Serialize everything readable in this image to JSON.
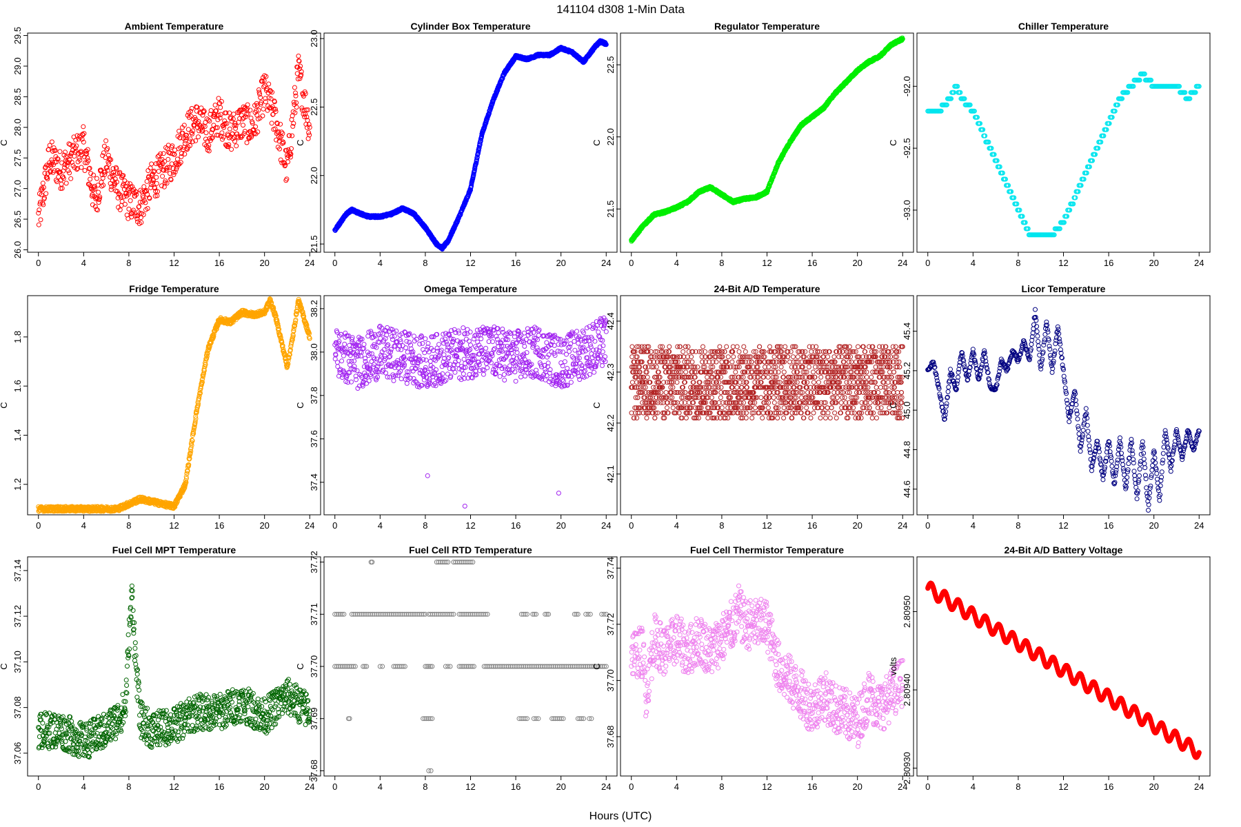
{
  "figure": {
    "title": "141104   d308   1-Min Data",
    "xlabel": "Hours (UTC)"
  },
  "chart_data": [
    {
      "type": "scatter",
      "title": "Ambient Temperature",
      "xlabel": "",
      "ylabel": "C",
      "color": "#ff0000",
      "xlim": [
        -0.96,
        24.96
      ],
      "ylim": [
        25.96,
        29.54
      ],
      "xticks": [
        0,
        4,
        8,
        12,
        16,
        20,
        24
      ],
      "yticks": [
        26.0,
        26.5,
        27.0,
        27.5,
        28.0,
        28.5,
        29.0,
        29.5
      ],
      "ytick_decimals": 1,
      "x": [
        0,
        1,
        2,
        3,
        4,
        5,
        6,
        7,
        8,
        9,
        10,
        11,
        12,
        13,
        14,
        15,
        16,
        17,
        18,
        19,
        20,
        21,
        22,
        23,
        24
      ],
      "y": [
        26.5,
        27.5,
        27.3,
        27.5,
        27.7,
        26.8,
        27.5,
        27.0,
        26.8,
        26.7,
        27.1,
        27.3,
        27.5,
        27.9,
        28.1,
        27.9,
        28.2,
        27.9,
        28.1,
        28.0,
        28.6,
        28.1,
        27.3,
        28.9,
        28.0
      ],
      "spread": 0.32,
      "density": 30
    },
    {
      "type": "scatter",
      "title": "Cylinder Box Temperature",
      "xlabel": "",
      "ylabel": "C",
      "color": "#0000ff",
      "xlim": [
        -0.96,
        24.96
      ],
      "ylim": [
        21.44,
        23.04
      ],
      "xticks": [
        0,
        4,
        8,
        12,
        16,
        20,
        24
      ],
      "yticks": [
        21.5,
        22.0,
        22.5,
        23.0
      ],
      "ytick_decimals": 1,
      "x": [
        0,
        1,
        1.5,
        2,
        3,
        4,
        5,
        6,
        7,
        8,
        9,
        9.5,
        10,
        11,
        12,
        13,
        14,
        15,
        16,
        17,
        18,
        19,
        20,
        21,
        22,
        23,
        23.5,
        24
      ],
      "y": [
        21.6,
        21.72,
        21.75,
        21.73,
        21.7,
        21.7,
        21.72,
        21.76,
        21.72,
        21.62,
        21.5,
        21.47,
        21.52,
        21.7,
        21.9,
        22.3,
        22.55,
        22.75,
        22.87,
        22.85,
        22.88,
        22.88,
        22.93,
        22.9,
        22.83,
        22.94,
        22.98,
        22.96
      ],
      "spread": 0.008,
      "density": 60
    },
    {
      "type": "scatter",
      "title": "Regulator Temperature",
      "xlabel": "",
      "ylabel": "C",
      "color": "#00ee00",
      "xlim": [
        -0.96,
        24.96
      ],
      "ylim": [
        21.2,
        22.72
      ],
      "xticks": [
        0,
        4,
        8,
        12,
        16,
        20,
        24
      ],
      "yticks": [
        21.5,
        22.0,
        22.5
      ],
      "ytick_decimals": 1,
      "x": [
        0,
        1,
        2,
        3,
        4,
        5,
        6,
        7,
        8,
        9,
        10,
        11,
        12,
        13,
        14,
        15,
        16,
        17,
        18,
        19,
        20,
        21,
        22,
        23,
        24
      ],
      "y": [
        21.28,
        21.38,
        21.46,
        21.48,
        21.51,
        21.55,
        21.62,
        21.65,
        21.6,
        21.55,
        21.57,
        21.58,
        21.62,
        21.82,
        21.96,
        22.08,
        22.14,
        22.2,
        22.3,
        22.38,
        22.46,
        22.52,
        22.56,
        22.64,
        22.68
      ],
      "spread": 0.008,
      "density": 60
    },
    {
      "type": "scatter",
      "title": "Chiller Temperature",
      "xlabel": "",
      "ylabel": "C",
      "color": "#00e5ee",
      "xlim": [
        -0.96,
        24.96
      ],
      "ylim": [
        -93.34,
        -91.57
      ],
      "xticks": [
        0,
        4,
        8,
        12,
        16,
        20,
        24
      ],
      "yticks": [
        -92.0,
        -92.5,
        -93.0
      ],
      "ytick_decimals": 1,
      "x": [
        0,
        1,
        2,
        2.5,
        3,
        4,
        5,
        6,
        7,
        8,
        9,
        10,
        11,
        12,
        13,
        14,
        15,
        16,
        17,
        18,
        19,
        20,
        21,
        22,
        23,
        24
      ],
      "y": [
        -92.2,
        -92.2,
        -92.1,
        -92.0,
        -92.1,
        -92.2,
        -92.4,
        -92.6,
        -92.8,
        -93.0,
        -93.2,
        -93.2,
        -93.2,
        -93.1,
        -92.9,
        -92.7,
        -92.5,
        -92.3,
        -92.1,
        -92.0,
        -91.9,
        -92.0,
        -92.0,
        -92.0,
        -92.1,
        -92.0
      ],
      "spread": 0.0,
      "density": 16,
      "quant": 0.05
    },
    {
      "type": "scatter",
      "title": "Fridge Temperature",
      "xlabel": "",
      "ylabel": "C",
      "color": "#ffa500",
      "xlim": [
        -0.96,
        24.96
      ],
      "ylim": [
        1.076,
        1.968
      ],
      "xticks": [
        0,
        4,
        8,
        12,
        16,
        20,
        24
      ],
      "yticks": [
        1.2,
        1.4,
        1.6,
        1.8
      ],
      "ytick_decimals": 1,
      "x": [
        0,
        2,
        4,
        6,
        7,
        8,
        9,
        10,
        11,
        12,
        13,
        14,
        15,
        16,
        17,
        18,
        19,
        20,
        20.5,
        21,
        22,
        22.5,
        23,
        24
      ],
      "y": [
        1.1,
        1.1,
        1.1,
        1.1,
        1.1,
        1.12,
        1.14,
        1.13,
        1.12,
        1.11,
        1.2,
        1.5,
        1.75,
        1.87,
        1.86,
        1.9,
        1.89,
        1.9,
        1.95,
        1.88,
        1.68,
        1.8,
        1.95,
        1.8
      ],
      "spread": 0.01,
      "density": 50
    },
    {
      "type": "scatter",
      "title": "Omega Temperature",
      "xlabel": "",
      "ylabel": "C",
      "color": "#a020f0",
      "xlim": [
        -0.96,
        24.96
      ],
      "ylim": [
        37.25,
        38.26
      ],
      "xticks": [
        0,
        4,
        8,
        12,
        16,
        20,
        24
      ],
      "yticks": [
        37.4,
        37.6,
        37.8,
        38.0,
        38.2
      ],
      "ytick_decimals": 1,
      "x": [
        0,
        2,
        4,
        6,
        8,
        10,
        12,
        14,
        16,
        18,
        20,
        22,
        24
      ],
      "y": [
        38.0,
        37.95,
        38.0,
        37.98,
        37.95,
        37.98,
        38.0,
        38.0,
        37.98,
        38.0,
        37.95,
        38.0,
        38.05
      ],
      "spread": 0.12,
      "density": 40,
      "outliers": [
        [
          8.2,
          37.43
        ],
        [
          11.5,
          37.29
        ],
        [
          19.8,
          37.35
        ]
      ]
    },
    {
      "type": "scatter",
      "title": "24-Bit A/D Temperature",
      "xlabel": "",
      "ylabel": "C",
      "color": "#b22222",
      "xlim": [
        -0.96,
        24.96
      ],
      "ylim": [
        42.02,
        42.45
      ],
      "xticks": [
        0,
        4,
        8,
        12,
        16,
        20,
        24
      ],
      "yticks": [
        42.1,
        42.2,
        42.3,
        42.4
      ],
      "ytick_decimals": 1,
      "x": [
        0,
        4,
        8,
        12,
        16,
        20,
        24
      ],
      "y": [
        42.28,
        42.28,
        42.28,
        42.28,
        42.28,
        42.28,
        42.28
      ],
      "spread": 0.07,
      "density": 70,
      "quant": 0.01
    },
    {
      "type": "scatter",
      "title": "Licor Temperature",
      "xlabel": "",
      "ylabel": "C",
      "color": "#000080",
      "xlim": [
        -0.96,
        24.96
      ],
      "ylim": [
        44.47,
        45.58
      ],
      "xticks": [
        0,
        4,
        8,
        12,
        16,
        20,
        24
      ],
      "yticks": [
        44.6,
        44.8,
        45.0,
        45.2,
        45.4
      ],
      "ytick_decimals": 1,
      "x": [
        0,
        0.5,
        1,
        1.5,
        2,
        2.5,
        3,
        3.5,
        4,
        4.5,
        5,
        5.5,
        6,
        6.5,
        7,
        7.5,
        8,
        8.5,
        9,
        9.5,
        10,
        10.5,
        11,
        11.5,
        12,
        12.5,
        13,
        13.5,
        14,
        14.5,
        15,
        15.5,
        16,
        16.5,
        17,
        17.5,
        18,
        18.5,
        19,
        19.5,
        20,
        20.5,
        21,
        21.5,
        22,
        22.5,
        23,
        23.5,
        24
      ],
      "y": [
        45.2,
        45.25,
        45.1,
        44.95,
        45.2,
        45.1,
        45.3,
        45.15,
        45.3,
        45.15,
        45.3,
        45.12,
        45.1,
        45.25,
        45.2,
        45.3,
        45.25,
        45.35,
        45.25,
        45.5,
        45.2,
        45.45,
        45.2,
        45.42,
        45.2,
        44.95,
        45.1,
        44.8,
        45.0,
        44.7,
        44.85,
        44.65,
        44.85,
        44.62,
        44.85,
        44.6,
        44.85,
        44.55,
        44.85,
        44.5,
        44.8,
        44.55,
        44.9,
        44.7,
        44.9,
        44.75,
        44.9,
        44.8,
        44.9
      ],
      "spread": 0.01,
      "density": 24
    },
    {
      "type": "scatter",
      "title": "Fuel Cell MPT Temperature",
      "xlabel": "",
      "ylabel": "C",
      "color": "#006400",
      "xlim": [
        -0.96,
        24.96
      ],
      "ylim": [
        37.05,
        37.146
      ],
      "xticks": [
        0,
        4,
        8,
        12,
        16,
        20,
        24
      ],
      "yticks": [
        37.06,
        37.08,
        37.1,
        37.12,
        37.14
      ],
      "ytick_decimals": 2,
      "x": [
        0,
        2,
        4,
        6,
        7,
        7.7,
        8,
        8.3,
        8.6,
        9,
        10,
        12,
        14,
        16,
        18,
        20,
        22,
        24
      ],
      "y": [
        37.07,
        37.07,
        37.065,
        37.07,
        37.075,
        37.08,
        37.11,
        37.13,
        37.1,
        37.075,
        37.07,
        37.072,
        37.078,
        37.078,
        37.082,
        37.076,
        37.085,
        37.078
      ],
      "spread": 0.008,
      "density": 40
    },
    {
      "type": "scatter",
      "title": "Fuel Cell RTD Temperature",
      "xlabel": "",
      "ylabel": "C",
      "color": "#808080",
      "xlim": [
        -0.96,
        24.96
      ],
      "ylim": [
        37.679,
        37.721
      ],
      "xticks": [
        0,
        4,
        8,
        12,
        16,
        20,
        24
      ],
      "yticks": [
        37.68,
        37.69,
        37.7,
        37.71,
        37.72
      ],
      "ytick_decimals": 2,
      "levels": [
        {
          "y": 37.72,
          "segments": [
            [
              3.2,
              3.3
            ],
            [
              9.0,
              10.0
            ],
            [
              10.5,
              12.2
            ]
          ]
        },
        {
          "y": 37.71,
          "segments": [
            [
              0,
              0.8
            ],
            [
              1.5,
              8.0
            ],
            [
              8.3,
              10.5
            ],
            [
              11.0,
              13.5
            ],
            [
              16.5,
              17.0
            ],
            [
              17.5,
              17.8
            ],
            [
              18.6,
              18.9
            ],
            [
              21.2,
              21.5
            ],
            [
              22.2,
              22.6
            ],
            [
              23.6,
              24
            ]
          ]
        },
        {
          "y": 37.7,
          "segments": [
            [
              0,
              1.8
            ],
            [
              2.5,
              2.8
            ],
            [
              4.0,
              4.2
            ],
            [
              5.2,
              6.2
            ],
            [
              8.0,
              8.6
            ],
            [
              9.8,
              10.2
            ],
            [
              11.0,
              12.3
            ],
            [
              13.2,
              24
            ]
          ]
        },
        {
          "y": 37.69,
          "segments": [
            [
              1.2,
              1.3
            ],
            [
              7.8,
              8.6
            ],
            [
              16.3,
              17.0
            ],
            [
              17.6,
              18.0
            ],
            [
              19.2,
              20.2
            ],
            [
              21.5,
              22.0
            ],
            [
              22.5,
              22.7
            ]
          ]
        },
        {
          "y": 37.68,
          "segments": [
            [
              8.3,
              8.5
            ]
          ]
        }
      ]
    },
    {
      "type": "scatter",
      "title": "Fuel Cell Thermistor Temperature",
      "xlabel": "",
      "ylabel": "C",
      "color": "#ee82ee",
      "xlim": [
        -0.96,
        24.96
      ],
      "ylim": [
        37.666,
        37.744
      ],
      "xticks": [
        0,
        4,
        8,
        12,
        16,
        20,
        24
      ],
      "yticks": [
        37.68,
        37.7,
        37.72,
        37.74
      ],
      "ytick_decimals": 2,
      "x": [
        0,
        1,
        1.3,
        2,
        3,
        4,
        5,
        6,
        7,
        8,
        9,
        9.5,
        10,
        11,
        12,
        13,
        14,
        15,
        16,
        17,
        18,
        19,
        20,
        21,
        22,
        23,
        24
      ],
      "y": [
        37.71,
        37.71,
        37.695,
        37.715,
        37.71,
        37.715,
        37.71,
        37.715,
        37.71,
        37.715,
        37.72,
        37.725,
        37.72,
        37.72,
        37.72,
        37.705,
        37.7,
        37.695,
        37.69,
        37.695,
        37.69,
        37.688,
        37.685,
        37.695,
        37.69,
        37.695,
        37.7
      ],
      "spread": 0.009,
      "density": 40
    },
    {
      "type": "scatter",
      "title": "24-Bit A/D Battery Voltage",
      "xlabel": "",
      "ylabel": "volts",
      "color": "#ff0000",
      "xlim": [
        -0.96,
        24.96
      ],
      "ylim": [
        2.80929,
        2.80957
      ],
      "xticks": [
        0,
        4,
        8,
        12,
        16,
        20,
        24
      ],
      "yticks": [
        2.8093,
        2.8094,
        2.8095
      ],
      "ytick_decimals": 5,
      "x": [
        0,
        24
      ],
      "y": [
        2.80953,
        2.80932
      ],
      "spread": 5e-07,
      "density": 400,
      "wave": {
        "amp": 8.5e-06,
        "period": 1.2
      }
    }
  ]
}
